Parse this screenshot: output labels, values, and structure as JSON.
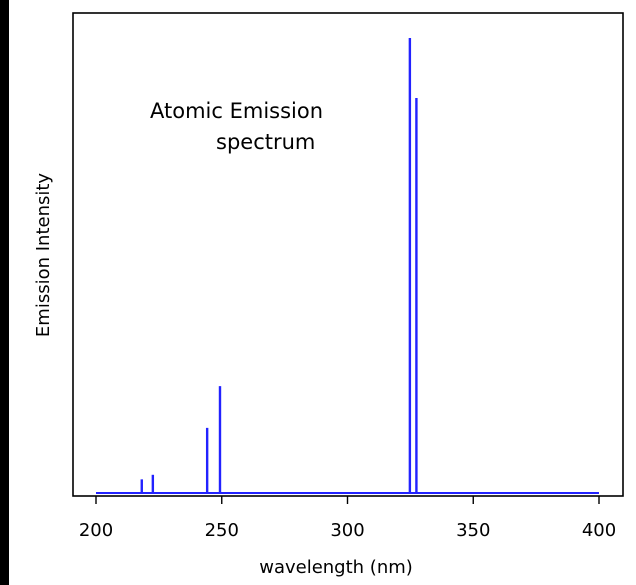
{
  "chart_data": {
    "type": "bar",
    "title": "",
    "annotation": [
      "Atomic Emission",
      "spectrum"
    ],
    "xlabel": "wavelength (nm)",
    "ylabel": "Emission Intensity",
    "xlim": [
      200,
      400
    ],
    "xticks": [
      200,
      250,
      300,
      350,
      400
    ],
    "ylim": [
      0,
      1
    ],
    "grid": false,
    "line_color": "#2222ff",
    "series": [
      {
        "x": [
          218.2,
          222.6,
          244.2,
          249.3,
          324.8,
          327.4
        ],
        "values": [
          0.03,
          0.04,
          0.143,
          0.235,
          1.0,
          0.868
        ]
      }
    ],
    "baseline": {
      "x_start": 200,
      "x_end": 400,
      "value": 0
    }
  }
}
